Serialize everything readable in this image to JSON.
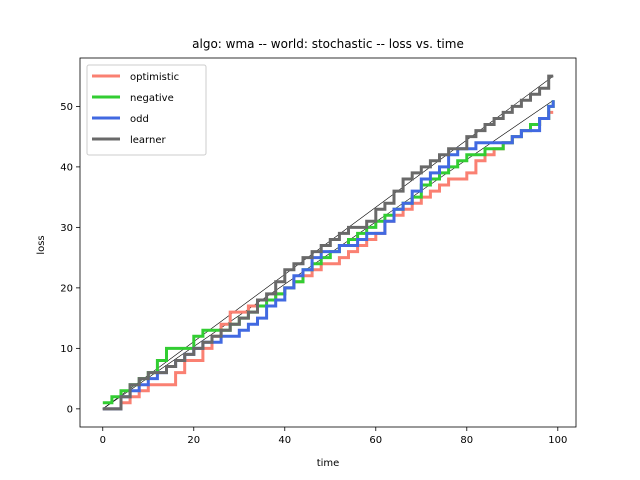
{
  "chart_data": {
    "type": "line",
    "title": "algo: wma -- world: stochastic -- loss vs. time",
    "xlabel": "time",
    "ylabel": "loss",
    "xlim": [
      -5,
      104
    ],
    "ylim": [
      -3,
      58
    ],
    "xticks": [
      0,
      20,
      40,
      60,
      80,
      100
    ],
    "yticks": [
      0,
      10,
      20,
      30,
      40,
      50
    ],
    "grid": false,
    "legend_position": "top-left",
    "series": [
      {
        "name": "optimistic",
        "color": "#fa8072",
        "points": [
          [
            0,
            0
          ],
          [
            2,
            0
          ],
          [
            4,
            1
          ],
          [
            6,
            2
          ],
          [
            8,
            3
          ],
          [
            10,
            4
          ],
          [
            12,
            4
          ],
          [
            14,
            4
          ],
          [
            16,
            6
          ],
          [
            18,
            8
          ],
          [
            20,
            8
          ],
          [
            22,
            10
          ],
          [
            24,
            12
          ],
          [
            26,
            14
          ],
          [
            28,
            16
          ],
          [
            30,
            16
          ],
          [
            32,
            17
          ],
          [
            34,
            18
          ],
          [
            36,
            18
          ],
          [
            38,
            19
          ],
          [
            40,
            20
          ],
          [
            42,
            21
          ],
          [
            44,
            22
          ],
          [
            46,
            23
          ],
          [
            48,
            24
          ],
          [
            50,
            24
          ],
          [
            52,
            25
          ],
          [
            54,
            26
          ],
          [
            56,
            27
          ],
          [
            58,
            28
          ],
          [
            60,
            29
          ],
          [
            62,
            31
          ],
          [
            64,
            32
          ],
          [
            66,
            33
          ],
          [
            68,
            34
          ],
          [
            70,
            35
          ],
          [
            72,
            36
          ],
          [
            74,
            37
          ],
          [
            76,
            38
          ],
          [
            78,
            38
          ],
          [
            80,
            39
          ],
          [
            82,
            41
          ],
          [
            84,
            42
          ],
          [
            86,
            43
          ],
          [
            88,
            44
          ],
          [
            90,
            45
          ],
          [
            92,
            46
          ],
          [
            94,
            47
          ],
          [
            96,
            48
          ],
          [
            98,
            49
          ],
          [
            99,
            49
          ]
        ]
      },
      {
        "name": "negative",
        "color": "#32cd32",
        "points": [
          [
            0,
            1
          ],
          [
            2,
            2
          ],
          [
            4,
            3
          ],
          [
            6,
            4
          ],
          [
            8,
            5
          ],
          [
            10,
            6
          ],
          [
            12,
            8
          ],
          [
            14,
            10
          ],
          [
            16,
            10
          ],
          [
            18,
            10
          ],
          [
            20,
            12
          ],
          [
            22,
            13
          ],
          [
            24,
            13
          ],
          [
            26,
            13
          ],
          [
            28,
            14
          ],
          [
            30,
            15
          ],
          [
            32,
            16
          ],
          [
            34,
            17
          ],
          [
            36,
            18
          ],
          [
            38,
            19
          ],
          [
            40,
            20
          ],
          [
            42,
            21
          ],
          [
            44,
            23
          ],
          [
            46,
            24
          ],
          [
            48,
            25
          ],
          [
            50,
            26
          ],
          [
            52,
            27
          ],
          [
            54,
            28
          ],
          [
            56,
            29
          ],
          [
            58,
            30
          ],
          [
            60,
            31
          ],
          [
            62,
            32
          ],
          [
            64,
            33
          ],
          [
            66,
            34
          ],
          [
            68,
            35
          ],
          [
            70,
            37
          ],
          [
            72,
            38
          ],
          [
            74,
            39
          ],
          [
            76,
            40
          ],
          [
            78,
            41
          ],
          [
            80,
            42
          ],
          [
            82,
            42
          ],
          [
            84,
            43
          ],
          [
            86,
            43
          ],
          [
            88,
            44
          ],
          [
            90,
            45
          ],
          [
            92,
            46
          ],
          [
            94,
            47
          ],
          [
            96,
            48
          ],
          [
            98,
            50
          ],
          [
            99,
            51
          ]
        ]
      },
      {
        "name": "odd",
        "color": "#4169e1",
        "points": [
          [
            0,
            0
          ],
          [
            2,
            0
          ],
          [
            4,
            2
          ],
          [
            6,
            3
          ],
          [
            8,
            4
          ],
          [
            10,
            5
          ],
          [
            12,
            6
          ],
          [
            14,
            7
          ],
          [
            16,
            8
          ],
          [
            18,
            9
          ],
          [
            20,
            10
          ],
          [
            22,
            11
          ],
          [
            24,
            11
          ],
          [
            26,
            12
          ],
          [
            28,
            12
          ],
          [
            30,
            13
          ],
          [
            32,
            14
          ],
          [
            34,
            15
          ],
          [
            36,
            17
          ],
          [
            38,
            18
          ],
          [
            40,
            20
          ],
          [
            42,
            22
          ],
          [
            44,
            23
          ],
          [
            46,
            25
          ],
          [
            48,
            26
          ],
          [
            50,
            26
          ],
          [
            52,
            27
          ],
          [
            54,
            27
          ],
          [
            56,
            28
          ],
          [
            58,
            29
          ],
          [
            60,
            29
          ],
          [
            62,
            31
          ],
          [
            64,
            33
          ],
          [
            66,
            34
          ],
          [
            68,
            36
          ],
          [
            70,
            38
          ],
          [
            72,
            39
          ],
          [
            74,
            40
          ],
          [
            76,
            42
          ],
          [
            78,
            43
          ],
          [
            80,
            43
          ],
          [
            82,
            44
          ],
          [
            84,
            44
          ],
          [
            86,
            44
          ],
          [
            88,
            44
          ],
          [
            90,
            45
          ],
          [
            92,
            46
          ],
          [
            94,
            46
          ],
          [
            96,
            48
          ],
          [
            98,
            50
          ],
          [
            99,
            51
          ]
        ]
      },
      {
        "name": "learner",
        "color": "#696969",
        "points": [
          [
            0,
            0
          ],
          [
            2,
            0
          ],
          [
            4,
            2
          ],
          [
            6,
            4
          ],
          [
            8,
            5
          ],
          [
            10,
            6
          ],
          [
            12,
            6
          ],
          [
            14,
            7
          ],
          [
            16,
            8
          ],
          [
            18,
            9
          ],
          [
            20,
            10
          ],
          [
            22,
            11
          ],
          [
            24,
            12
          ],
          [
            26,
            13
          ],
          [
            28,
            14
          ],
          [
            30,
            15
          ],
          [
            32,
            16
          ],
          [
            34,
            18
          ],
          [
            36,
            19
          ],
          [
            38,
            21
          ],
          [
            40,
            23
          ],
          [
            42,
            24
          ],
          [
            44,
            25
          ],
          [
            46,
            26
          ],
          [
            48,
            27
          ],
          [
            50,
            28
          ],
          [
            52,
            29
          ],
          [
            54,
            30
          ],
          [
            56,
            30
          ],
          [
            58,
            31
          ],
          [
            60,
            33
          ],
          [
            62,
            34
          ],
          [
            64,
            36
          ],
          [
            66,
            38
          ],
          [
            68,
            39
          ],
          [
            70,
            40
          ],
          [
            72,
            41
          ],
          [
            74,
            42
          ],
          [
            76,
            43
          ],
          [
            78,
            43
          ],
          [
            80,
            45
          ],
          [
            82,
            46
          ],
          [
            84,
            47
          ],
          [
            86,
            48
          ],
          [
            88,
            49
          ],
          [
            90,
            50
          ],
          [
            92,
            51
          ],
          [
            94,
            52
          ],
          [
            96,
            53
          ],
          [
            98,
            55
          ],
          [
            99,
            55
          ]
        ]
      }
    ],
    "reference_lines": [
      {
        "color": "#000000",
        "points": [
          [
            0,
            0
          ],
          [
            99,
            55
          ]
        ]
      },
      {
        "color": "#000000",
        "points": [
          [
            0,
            0
          ],
          [
            99,
            51
          ]
        ]
      }
    ]
  }
}
